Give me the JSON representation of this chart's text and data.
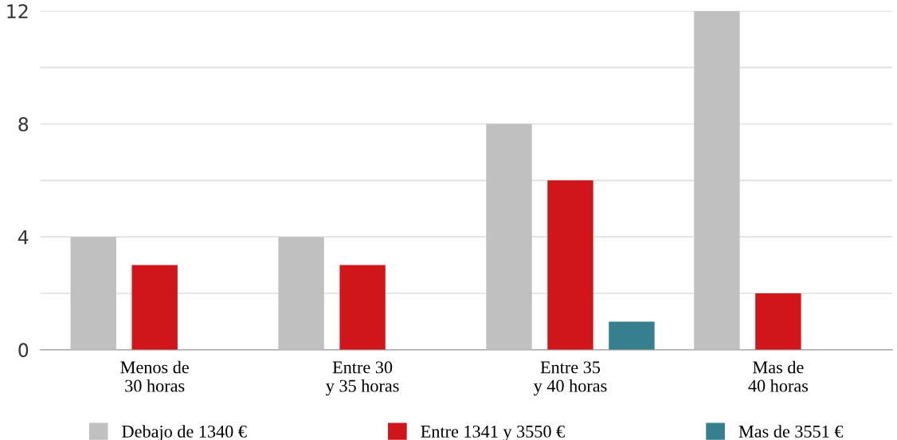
{
  "chart_data": {
    "type": "bar",
    "categories": [
      "Menos de\n30 horas",
      "Entre 30\ny 35 horas",
      "Entre 35\ny 40 horas",
      "Mas de\n40 horas"
    ],
    "series": [
      {
        "name": "Debajo de 1340 €",
        "color": "#c0c0c0",
        "values": [
          4,
          4,
          8,
          12
        ]
      },
      {
        "name": "Entre 1341 y 3550 €",
        "color": "#d0161b",
        "values": [
          3,
          3,
          6,
          2
        ]
      },
      {
        "name": "Mas de 3551 €",
        "color": "#367f8e",
        "values": [
          null,
          null,
          1,
          null
        ]
      }
    ],
    "ylim": [
      0,
      12
    ],
    "yticks": [
      0,
      {
        "value": 2,
        "label": null
      },
      4,
      {
        "value": 6,
        "label": null
      },
      8,
      {
        "value": 10,
        "label": null
      },
      12
    ],
    "grid": "y",
    "legend": "bottom"
  }
}
